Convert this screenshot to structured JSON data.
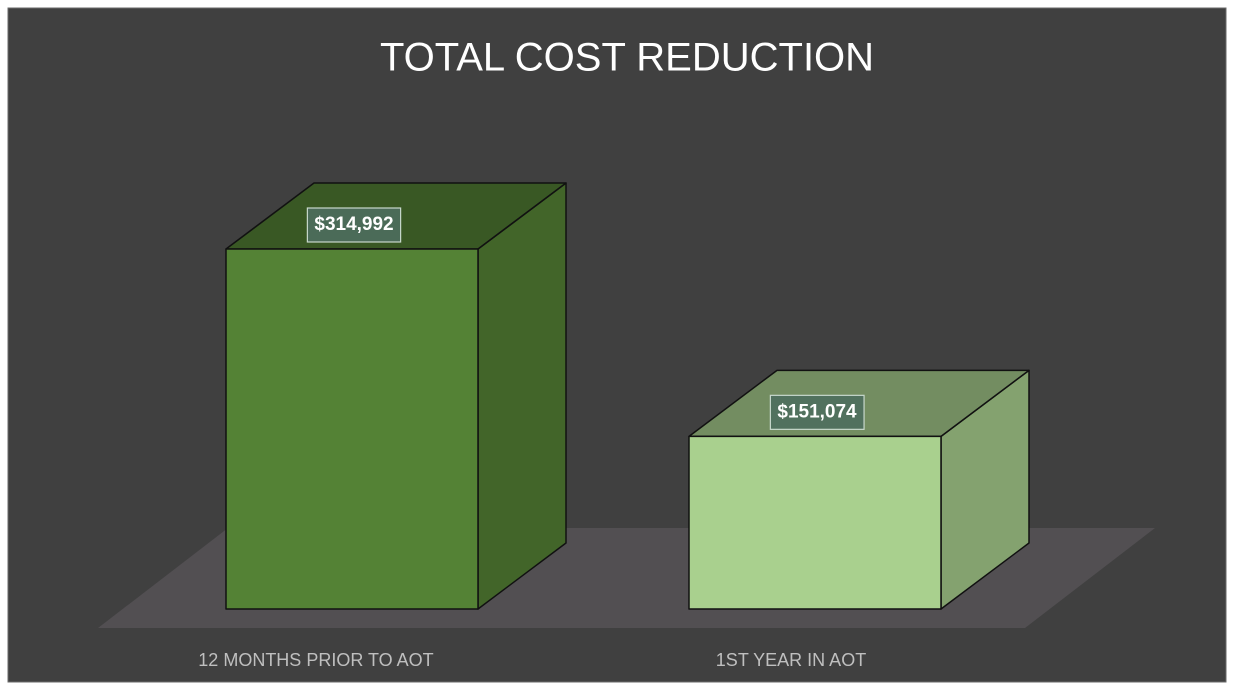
{
  "chart_data": {
    "type": "bar3d",
    "title": "TOTAL COST REDUCTION",
    "categories": [
      "12 MONTHS PRIOR TO AOT",
      "1ST YEAR IN AOT"
    ],
    "values": [
      314992,
      151074
    ],
    "value_labels": [
      "$314,992",
      "$151,074"
    ],
    "colors": [
      "#548235",
      "#a9d08e"
    ]
  }
}
